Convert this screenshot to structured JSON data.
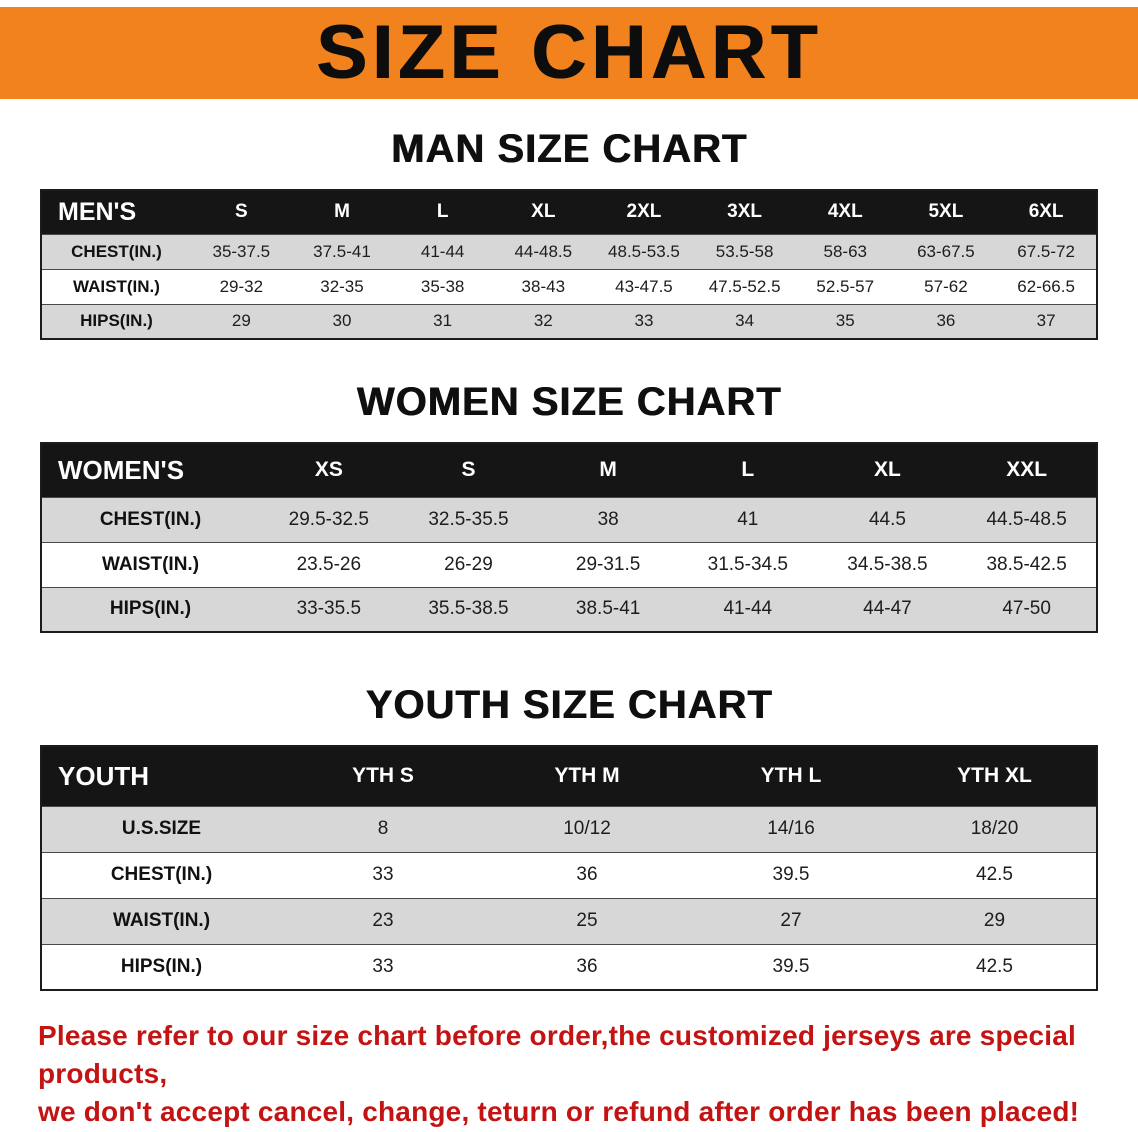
{
  "banner": {
    "title": "SIZE CHART",
    "bg_color": "#f2821d",
    "text_color": "#0d0d0d"
  },
  "sections": [
    {
      "heading": "MAN SIZE CHART",
      "table": {
        "header": [
          "MEN'S",
          "S",
          "M",
          "L",
          "XL",
          "2XL",
          "3XL",
          "4XL",
          "5XL",
          "6XL"
        ],
        "rows": [
          [
            "CHEST(IN.)",
            "35-37.5",
            "37.5-41",
            "41-44",
            "44-48.5",
            "48.5-53.5",
            "53.5-58",
            "58-63",
            "63-67.5",
            "67.5-72"
          ],
          [
            "WAIST(IN.)",
            "29-32",
            "32-35",
            "35-38",
            "38-43",
            "43-47.5",
            "47.5-52.5",
            "52.5-57",
            "57-62",
            "62-66.5"
          ],
          [
            "HIPS(IN.)",
            "29",
            "30",
            "31",
            "32",
            "33",
            "34",
            "35",
            "36",
            "37"
          ]
        ]
      }
    },
    {
      "heading": "WOMEN SIZE CHART",
      "table": {
        "header": [
          "WOMEN'S",
          "XS",
          "S",
          "M",
          "L",
          "XL",
          "XXL"
        ],
        "rows": [
          [
            "CHEST(IN.)",
            "29.5-32.5",
            "32.5-35.5",
            "38",
            "41",
            "44.5",
            "44.5-48.5"
          ],
          [
            "WAIST(IN.)",
            "23.5-26",
            "26-29",
            "29-31.5",
            "31.5-34.5",
            "34.5-38.5",
            "38.5-42.5"
          ],
          [
            "HIPS(IN.)",
            "33-35.5",
            "35.5-38.5",
            "38.5-41",
            "41-44",
            "44-47",
            "47-50"
          ]
        ]
      }
    },
    {
      "heading": "YOUTH SIZE CHART",
      "table": {
        "header": [
          "YOUTH",
          "YTH S",
          "YTH M",
          "YTH L",
          "YTH XL"
        ],
        "rows": [
          [
            "U.S.SIZE",
            "8",
            "10/12",
            "14/16",
            "18/20"
          ],
          [
            "CHEST(IN.)",
            "33",
            "36",
            "39.5",
            "42.5"
          ],
          [
            "WAIST(IN.)",
            "23",
            "25",
            "27",
            "29"
          ],
          [
            "HIPS(IN.)",
            "33",
            "36",
            "39.5",
            "42.5"
          ]
        ]
      }
    }
  ],
  "table_colors": {
    "header_bg": "#151515",
    "header_text": "#ffffff",
    "row_shaded": "#d7d7d7",
    "row_plain": "#ffffff"
  },
  "footer": {
    "lines": [
      "Please refer to our size chart before order,the customized jerseys are special products,",
      "we don't accept cancel, change, teturn or refund after order has been placed!"
    ],
    "text_color": "#c41313"
  }
}
